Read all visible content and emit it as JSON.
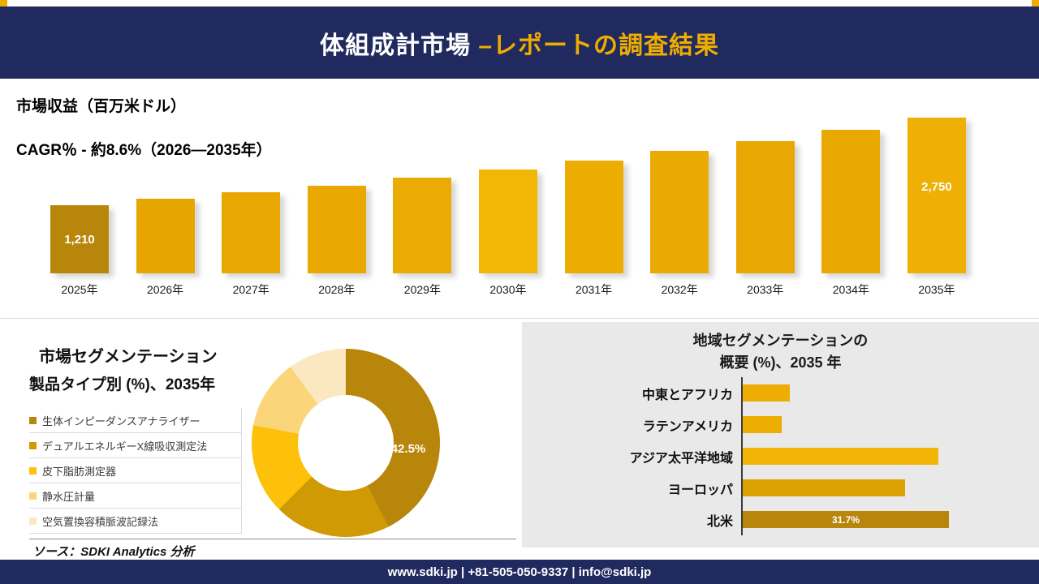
{
  "header": {
    "title_white": "体組成計市場",
    "title_gold": " –レポートの調査結果"
  },
  "revenue_section": {
    "title": "市場収益（百万米ドル）",
    "cagr": "CAGR％ - 約8.6%（2026―2035年）"
  },
  "segmentation_section": {
    "title_line1": "市場セグメンテーション",
    "title_line2": "製品タイプ別 (%)、2035年",
    "slice_label": "42.5%",
    "source": "ソース：SDKI Analytics 分析"
  },
  "regional_section": {
    "title_line1": "地域セグメンテーションの",
    "title_line2": "概要 (%)、2035 年"
  },
  "footer": {
    "text": "www.sdki.jp | +81-505-050-9337 | info@sdki.jp"
  },
  "colors": {
    "navy": "#212a5e",
    "gold": "#eead00",
    "dark_gold": "#b8860b",
    "panel_gray": "#e9e9e9"
  },
  "chart_data": [
    {
      "type": "bar",
      "title": "市場収益（百万米ドル）",
      "subtitle": "CAGR％ - 約8.6%（2026―2035年）",
      "categories": [
        "2025年",
        "2026年",
        "2027年",
        "2028年",
        "2029年",
        "2030年",
        "2031年",
        "2032年",
        "2033年",
        "2034年",
        "2035年"
      ],
      "values": [
        1210,
        1314,
        1427,
        1550,
        1683,
        1828,
        1985,
        2156,
        2341,
        2542,
        2750
      ],
      "value_labels": [
        "1,210",
        "",
        "",
        "",
        "",
        "",
        "",
        "",
        "",
        "",
        "2,750"
      ],
      "bar_colors": [
        "#b8860b",
        "#e6a502",
        "#e8a702",
        "#eaa902",
        "#ecab03",
        "#f2b705",
        "#edac02",
        "#ebaa02",
        "#e8a702",
        "#eaa902",
        "#eeb004"
      ],
      "ylim": [
        0,
        2750
      ],
      "ylabel": "百万米ドル",
      "grid": false,
      "legend": "none"
    },
    {
      "type": "pie",
      "donut": true,
      "title": "市場セグメンテーション 製品タイプ別 (%)、2035年",
      "labels": [
        "生体インピーダンスアナライザー",
        "デュアルエネルギーX線吸収測定法",
        "皮下脂肪測定器",
        "静水圧計量",
        "空気置換容積脈波記録法"
      ],
      "values": [
        42.5,
        20.0,
        15.5,
        12.0,
        10.0
      ],
      "colors": [
        "#b8860b",
        "#cf9a04",
        "#fdc10a",
        "#fbd579",
        "#fce8c0"
      ],
      "labeled_slice_index": 0,
      "labeled_slice_text": "42.5%",
      "legend_position": "left"
    },
    {
      "type": "bar",
      "orientation": "horizontal",
      "title": "地域セグメンテーションの概要 (%)、2035 年",
      "categories": [
        "中東とアフリカ",
        "ラテンアメリカ",
        "アジア太平洋地域",
        "ヨーロッパ",
        "北米"
      ],
      "values": [
        7.2,
        6.0,
        30.1,
        25.0,
        31.7
      ],
      "value_labels": [
        "",
        "",
        "",
        "",
        "31.7%"
      ],
      "bar_colors": [
        "#eead02",
        "#eead02",
        "#f2b405",
        "#dca202",
        "#b8860b"
      ],
      "xlim": [
        0,
        32
      ],
      "grid": false
    }
  ]
}
